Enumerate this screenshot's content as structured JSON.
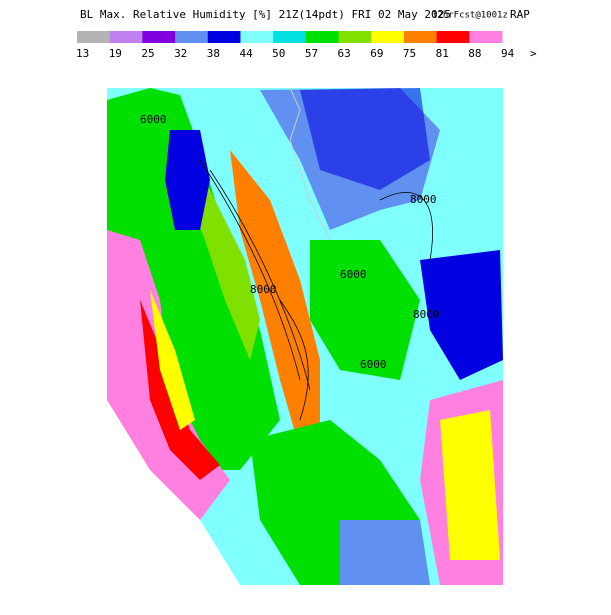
{
  "header": {
    "title": "BL Max. Relative Humidity [%] 21Z(14pdt) FRI 02 May 2025",
    "forecast": "12hrFcst@1001z",
    "model": "RAP"
  },
  "legend": {
    "colors": [
      "#b4b4b4",
      "#c080f0",
      "#8000e0",
      "#6090f0",
      "#0000e0",
      "#80ffff",
      "#00e0e0",
      "#00e000",
      "#80e000",
      "#ffff00",
      "#ff8000",
      "#ff0000",
      "#ff80e0"
    ],
    "labels": [
      "13",
      "19",
      "25",
      "32",
      "38",
      "44",
      "50",
      "57",
      "63",
      "69",
      "75",
      "81",
      "88",
      "94"
    ],
    "more": ">"
  },
  "contour_labels": [
    "6000",
    "8000",
    "6000",
    "8000",
    "8000",
    "6000"
  ]
}
